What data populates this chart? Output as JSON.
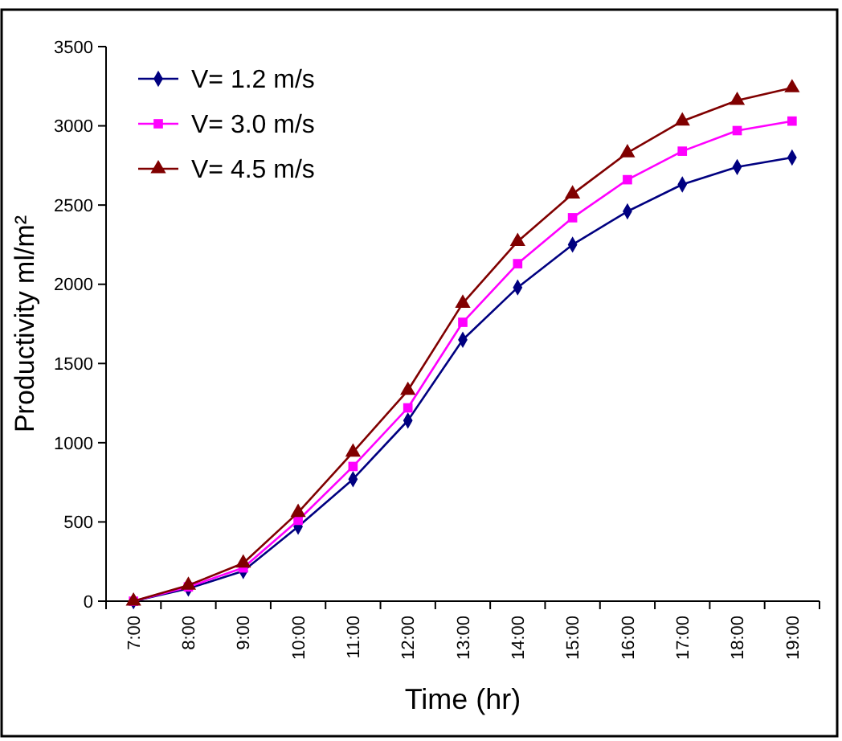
{
  "chart_data": {
    "type": "line",
    "xlabel": "Time (hr)",
    "ylabel": "Productivity ml/m²",
    "categories": [
      "7:00",
      "8:00",
      "9:00",
      "10:00",
      "11:00",
      "12:00",
      "13:00",
      "14:00",
      "15:00",
      "16:00",
      "17:00",
      "18:00",
      "19:00"
    ],
    "series": [
      {
        "name": "V= 1.2 m/s",
        "color": "#000080",
        "marker": "diamond",
        "values": [
          0,
          80,
          190,
          470,
          770,
          1140,
          1650,
          1980,
          2250,
          2460,
          2630,
          2740,
          2800
        ]
      },
      {
        "name": "V= 3.0 m/s",
        "color": "#ff00ff",
        "marker": "square",
        "values": [
          0,
          90,
          210,
          510,
          850,
          1220,
          1760,
          2130,
          2420,
          2660,
          2840,
          2970,
          3030
        ]
      },
      {
        "name": "V= 4.5 m/s",
        "color": "#800000",
        "marker": "triangle",
        "values": [
          0,
          100,
          240,
          560,
          940,
          1330,
          1880,
          2270,
          2570,
          2830,
          3030,
          3160,
          3240
        ]
      }
    ],
    "ylim": [
      0,
      3500
    ],
    "yticks": [
      0,
      500,
      1000,
      1500,
      2000,
      2500,
      3000,
      3500
    ],
    "grid": false,
    "legend": "top left",
    "line_style": "solid"
  }
}
